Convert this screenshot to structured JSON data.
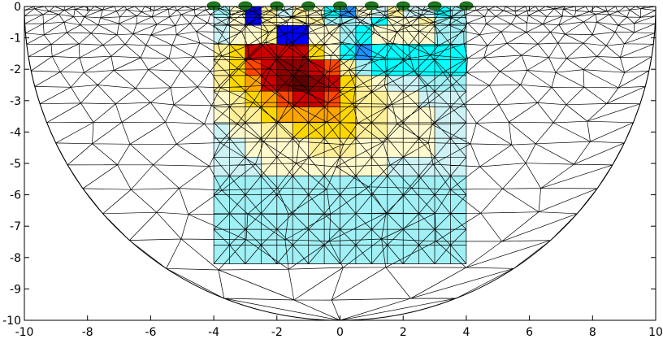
{
  "chart_data": {
    "type": "heatmap",
    "title": "",
    "xlabel": "",
    "ylabel": "",
    "xlim": [
      -10,
      10
    ],
    "ylim": [
      -10,
      0
    ],
    "x_ticks": [
      "-10",
      "-8",
      "-6",
      "-4",
      "-2",
      "0",
      "2",
      "4",
      "6",
      "8",
      "10"
    ],
    "y_ticks": [
      "0",
      "-1",
      "-2",
      "-3",
      "-4",
      "-5",
      "-6",
      "-7",
      "-8",
      "-9",
      "-10"
    ],
    "grid": false,
    "mesh": {
      "shape": "semicircle",
      "radius": 10,
      "inner_region": {
        "x": [
          -4,
          4
        ],
        "y": [
          -8.2,
          0
        ]
      }
    },
    "electrodes": {
      "color": "#1e7a1e",
      "x": [
        -4,
        -3,
        -2,
        -1,
        0,
        1,
        2,
        3,
        4
      ]
    },
    "colormap": [
      "#00008b",
      "#0000ff",
      "#1e90ff",
      "#00ffff",
      "#a0f0f5",
      "#ccf2f5",
      "#fffacd",
      "#ffef99",
      "#ffd700",
      "#ffa500",
      "#ff4500",
      "#cc0000",
      "#8b0000",
      "#5a0000"
    ],
    "cell_values": [
      {
        "row": 0,
        "y0": 0,
        "y1": -0.35,
        "cols": [
          4,
          6,
          1,
          7,
          5,
          7,
          6,
          3,
          2,
          6,
          5,
          7,
          5,
          5,
          3,
          4
        ]
      },
      {
        "row": 1,
        "y0": -0.35,
        "y1": -0.6,
        "cols": [
          5,
          6,
          1,
          7,
          6,
          7,
          7,
          4,
          4,
          5,
          3,
          6,
          6,
          7,
          4,
          4
        ]
      },
      {
        "row": 2,
        "y0": -0.6,
        "y1": -1.2,
        "cols": [
          5,
          6,
          6,
          7,
          1,
          1,
          6,
          6,
          4,
          3,
          6,
          6,
          6,
          6,
          4,
          4
        ]
      },
      {
        "row": 3,
        "y0": -1.2,
        "y1": -1.7,
        "cols": [
          7,
          8,
          11,
          11,
          11,
          11,
          8,
          6,
          3,
          2,
          3,
          3,
          3,
          3,
          3,
          3
        ]
      },
      {
        "row": 4,
        "y0": -1.7,
        "y1": -2.2,
        "cols": [
          7,
          8,
          10,
          11,
          12,
          12,
          11,
          10,
          7,
          4,
          3,
          3,
          3,
          3,
          3,
          3
        ]
      },
      {
        "row": 5,
        "y0": -2.2,
        "y1": -2.7,
        "cols": [
          7,
          8,
          9,
          11,
          12,
          13,
          12,
          11,
          8,
          7,
          6,
          5,
          5,
          4,
          4,
          4
        ]
      },
      {
        "row": 6,
        "y0": -2.7,
        "y1": -3.2,
        "cols": [
          6,
          7,
          8,
          9,
          10,
          11,
          11,
          10,
          8,
          7,
          7,
          6,
          6,
          5,
          5,
          5
        ]
      },
      {
        "row": 7,
        "y0": -3.2,
        "y1": -3.7,
        "cols": [
          6,
          7,
          7,
          8,
          9,
          9,
          9,
          9,
          8,
          7,
          7,
          6,
          6,
          6,
          5,
          5
        ]
      },
      {
        "row": 8,
        "y0": -3.7,
        "y1": -4.2,
        "cols": [
          5,
          6,
          6,
          7,
          7,
          8,
          8,
          8,
          8,
          7,
          7,
          6,
          6,
          6,
          5,
          5
        ]
      },
      {
        "row": 9,
        "y0": -4.2,
        "y1": -4.8,
        "cols": [
          5,
          5,
          6,
          6,
          6,
          6,
          7,
          7,
          7,
          6,
          6,
          6,
          6,
          6,
          5,
          5
        ]
      },
      {
        "row": 10,
        "y0": -4.8,
        "y1": -5.4,
        "cols": [
          5,
          5,
          5,
          6,
          6,
          6,
          6,
          6,
          6,
          6,
          6,
          5,
          5,
          5,
          5,
          5
        ]
      },
      {
        "row": 11,
        "y0": -5.4,
        "y1": -8.2,
        "cols": [
          4,
          4,
          4,
          4,
          4,
          4,
          4,
          4,
          4,
          4,
          4,
          4,
          4,
          4,
          4,
          4
        ]
      }
    ]
  }
}
